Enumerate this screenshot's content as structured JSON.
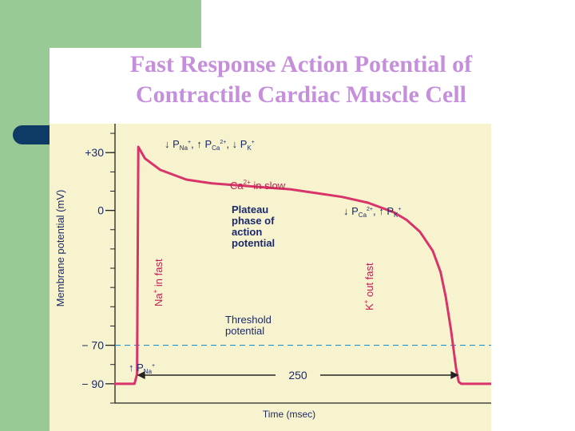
{
  "slide": {
    "title_line1": "Fast Response Action Potential of",
    "title_line2": "Contractile Cardiac Muscle Cell",
    "colors": {
      "green": "#99c994",
      "navy": "#0d3b66",
      "title": "#c58fdc",
      "figure_bg": "#f8f3cf",
      "curve": "#d8336a",
      "threshold": "#2d8fbf"
    }
  },
  "chart_data": {
    "type": "line",
    "xlabel": "Time (msec)",
    "ylabel": "Membrane potential (mV)",
    "yticks": [
      {
        "value": 30,
        "label": "+30"
      },
      {
        "value": 0,
        "label": "0"
      },
      {
        "value": -70,
        "label": "− 70"
      },
      {
        "value": -90,
        "label": "− 90"
      }
    ],
    "ylim": [
      -100,
      45
    ],
    "xlim": [
      -15,
      275
    ],
    "threshold": {
      "value": -70,
      "label_line1": "Threshold",
      "label_line2": "potential"
    },
    "series": [
      {
        "x": [
          -15,
          0,
          2,
          3,
          8,
          20,
          40,
          60,
          80,
          100,
          120,
          140,
          160,
          180,
          200,
          210,
          220,
          230,
          236,
          240,
          244,
          248,
          250,
          252,
          275
        ],
        "y": [
          -90,
          -90,
          -85,
          33,
          27,
          21,
          16,
          14,
          13,
          12,
          11,
          9,
          7,
          4,
          -1,
          -5,
          -11,
          -21,
          -32,
          -45,
          -62,
          -82,
          -89,
          -90,
          -90
        ]
      }
    ],
    "annotations": {
      "top_permeability": {
        "arrow1": "↓",
        "p1": "P",
        "s1": "Na",
        "u1": "+",
        "sep1": ", ",
        "arrow2": "↑",
        "p2": "P",
        "s2": "Ca",
        "u2": "2+",
        "sep2": ", ",
        "arrow3": "↓",
        "p3": "P",
        "s3": "K",
        "u3": "+"
      },
      "ca_in_slow": {
        "base": "Ca",
        "sup": "2+",
        "rest": " in slow"
      },
      "plateau": [
        "Plateau",
        "phase of",
        "action",
        "potential"
      ],
      "right_permeability": {
        "arrow1": "↓",
        "p1": "P",
        "s1": "Ca",
        "u1": "2+",
        "sep1": ", ",
        "arrow2": "↑",
        "p2": "P",
        "s2": "K",
        "u2": "+"
      },
      "na_in_fast": {
        "base": "Na",
        "sup": "+",
        "rest": " in fast"
      },
      "k_out_fast": {
        "base": "K",
        "sup": "+",
        "rest": " out fast"
      },
      "pna_low": {
        "arrow": "↑",
        "p": "P",
        "s": "Na",
        "u": "+"
      },
      "duration": {
        "value": 250,
        "label": "250"
      }
    }
  }
}
